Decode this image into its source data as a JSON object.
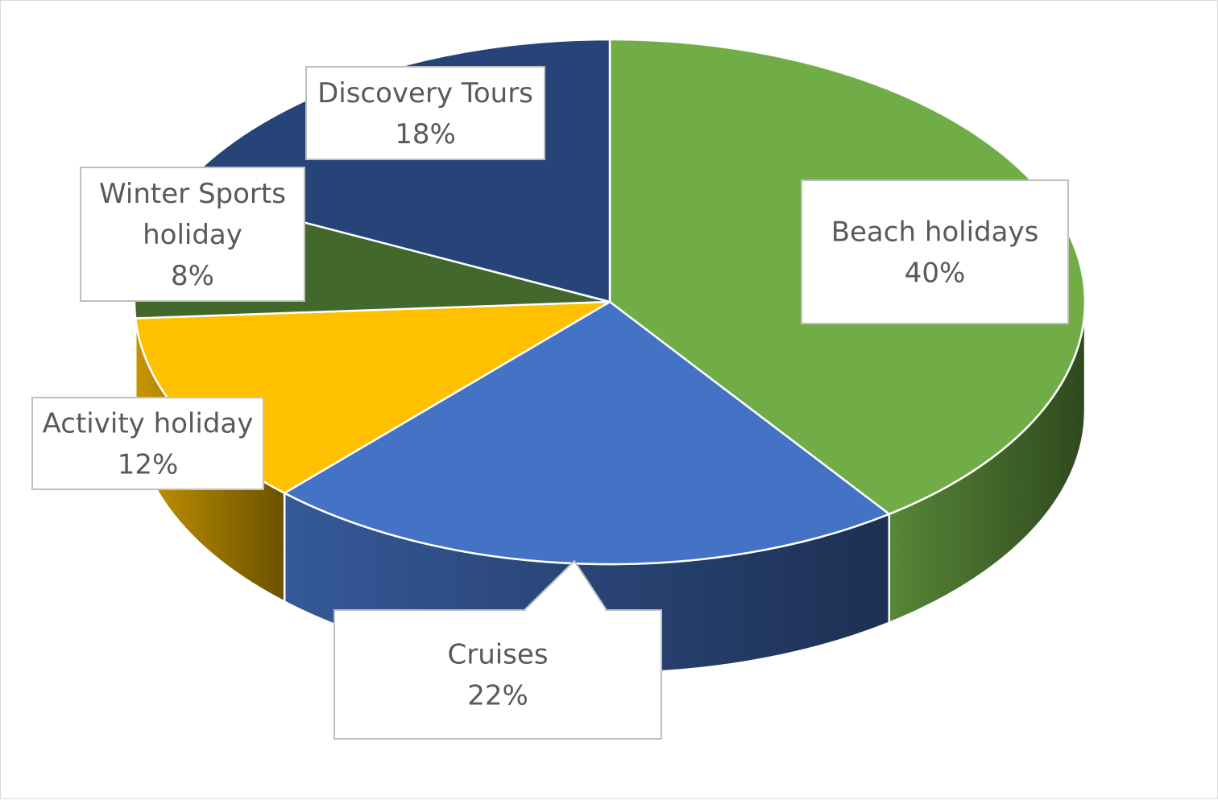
{
  "chart_data": {
    "type": "pie",
    "style": "3d",
    "title": "",
    "legend": "none",
    "slices": [
      {
        "label_lines": [
          "Beach holidays"
        ],
        "value_label": "40%",
        "value": 40,
        "color": "#70ad47"
      },
      {
        "label_lines": [
          "Cruises"
        ],
        "value_label": "22%",
        "value": 22,
        "color": "#4472c4"
      },
      {
        "label_lines": [
          "Activity holiday"
        ],
        "value_label": "12%",
        "value": 12,
        "color": "#ffc000"
      },
      {
        "label_lines": [
          "Winter Sports",
          "holiday"
        ],
        "value_label": "8%",
        "value": 8,
        "color": "#43682b"
      },
      {
        "label_lines": [
          "Discovery Tours"
        ],
        "value_label": "18%",
        "value": 18,
        "color": "#264478"
      }
    ]
  }
}
